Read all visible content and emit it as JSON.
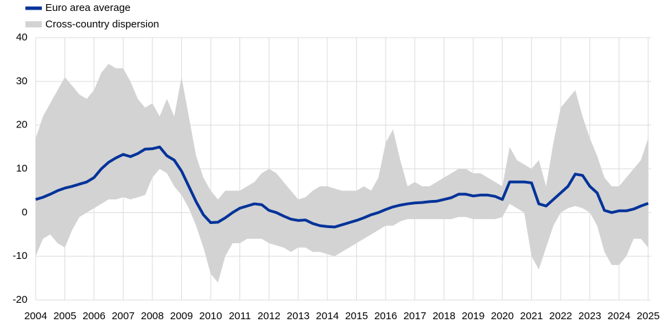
{
  "chart_data": {
    "type": "line_band",
    "x": [
      2004,
      2004.25,
      2004.5,
      2004.75,
      2005,
      2005.25,
      2005.5,
      2005.75,
      2006,
      2006.25,
      2006.5,
      2006.75,
      2007,
      2007.25,
      2007.5,
      2007.75,
      2008,
      2008.25,
      2008.5,
      2008.75,
      2009,
      2009.25,
      2009.5,
      2009.75,
      2010,
      2010.25,
      2010.5,
      2010.75,
      2011,
      2011.25,
      2011.5,
      2011.75,
      2012,
      2012.25,
      2012.5,
      2012.75,
      2013,
      2013.25,
      2013.5,
      2013.75,
      2014,
      2014.25,
      2014.5,
      2014.75,
      2015,
      2015.25,
      2015.5,
      2015.75,
      2016,
      2016.25,
      2016.5,
      2016.75,
      2017,
      2017.25,
      2017.5,
      2017.75,
      2018,
      2018.25,
      2018.5,
      2018.75,
      2019,
      2019.25,
      2019.5,
      2019.75,
      2020,
      2020.25,
      2020.5,
      2020.75,
      2021,
      2021.25,
      2021.5,
      2021.75,
      2022,
      2022.25,
      2022.5,
      2022.75,
      2023,
      2023.25,
      2023.5,
      2023.75,
      2024,
      2024.25,
      2024.5,
      2024.75,
      2025
    ],
    "series": [
      {
        "name": "Euro area average",
        "color": "#003299",
        "values": [
          3,
          3.5,
          4.2,
          5,
          5.6,
          6,
          6.5,
          7,
          8,
          10,
          11.5,
          12.5,
          13.3,
          12.8,
          13.5,
          14.5,
          14.6,
          15,
          13,
          12,
          9.5,
          6,
          2.5,
          -0.5,
          -2.3,
          -2.2,
          -1.2,
          0,
          1,
          1.5,
          2,
          1.8,
          0.5,
          0,
          -0.8,
          -1.5,
          -1.8,
          -1.7,
          -2.5,
          -3,
          -3.2,
          -3.3,
          -2.8,
          -2.3,
          -1.8,
          -1.2,
          -0.5,
          0,
          0.7,
          1.3,
          1.7,
          2,
          2.2,
          2.3,
          2.5,
          2.6,
          3,
          3.4,
          4.2,
          4.2,
          3.8,
          4,
          4,
          3.7,
          3,
          7,
          7,
          7,
          6.8,
          2,
          1.5,
          3,
          4.5,
          6,
          8.8,
          8.5,
          6,
          4.5,
          0.5,
          0,
          0.4,
          0.4,
          0.8,
          1.5,
          2.1
        ]
      },
      {
        "name": "Cross-country dispersion",
        "color": "#d3d3d3",
        "upper": [
          17,
          22,
          25,
          28,
          31,
          29,
          27,
          26,
          28,
          32,
          34,
          33,
          33,
          30,
          26,
          24,
          25,
          22,
          26,
          22,
          31,
          22,
          13,
          8,
          5,
          3,
          5,
          5,
          5,
          6,
          7,
          9,
          10,
          9,
          7,
          5,
          3,
          3.5,
          5,
          6,
          6,
          5.5,
          5,
          5,
          5,
          6,
          5,
          8,
          16,
          19,
          12,
          6,
          7,
          6,
          6,
          7,
          8,
          9,
          10,
          10,
          9,
          9,
          8,
          7,
          6,
          15,
          12,
          11,
          10,
          12,
          6,
          16,
          24,
          26,
          28,
          22,
          17,
          13,
          8,
          6,
          6,
          8,
          10,
          12,
          17
        ],
        "lower": [
          -10,
          -6,
          -5,
          -7,
          -8,
          -4,
          -1,
          0,
          1,
          2,
          3,
          3,
          3.5,
          3,
          3.5,
          4,
          8,
          10,
          9,
          6,
          4,
          1,
          -3,
          -8,
          -14,
          -16,
          -10,
          -7,
          -7,
          -6,
          -6,
          -6,
          -7,
          -7.5,
          -8,
          -9,
          -8,
          -8,
          -9,
          -9,
          -9.5,
          -10,
          -9,
          -8,
          -7,
          -6,
          -5,
          -4,
          -3,
          -3,
          -2,
          -1.5,
          -1.5,
          -1.5,
          -1.5,
          -1.5,
          -1.5,
          -1.5,
          -1,
          -1,
          -1.5,
          -1.5,
          -1.5,
          -1.5,
          -1,
          2,
          1,
          0,
          -10,
          -13,
          -8,
          -3,
          0,
          1,
          1.5,
          1,
          0,
          -3,
          -9,
          -12,
          -12,
          -10,
          -6,
          -6,
          -8
        ]
      }
    ],
    "xlim": [
      2004,
      2025.1
    ],
    "xticks": [
      2004,
      2005,
      2006,
      2007,
      2008,
      2009,
      2010,
      2011,
      2012,
      2013,
      2014,
      2015,
      2016,
      2017,
      2018,
      2019,
      2020,
      2021,
      2022,
      2023,
      2024,
      2025
    ],
    "ylim": [
      -20,
      40
    ],
    "yticks": [
      -20,
      -10,
      0,
      10,
      20,
      30,
      40
    ],
    "grid": true
  }
}
